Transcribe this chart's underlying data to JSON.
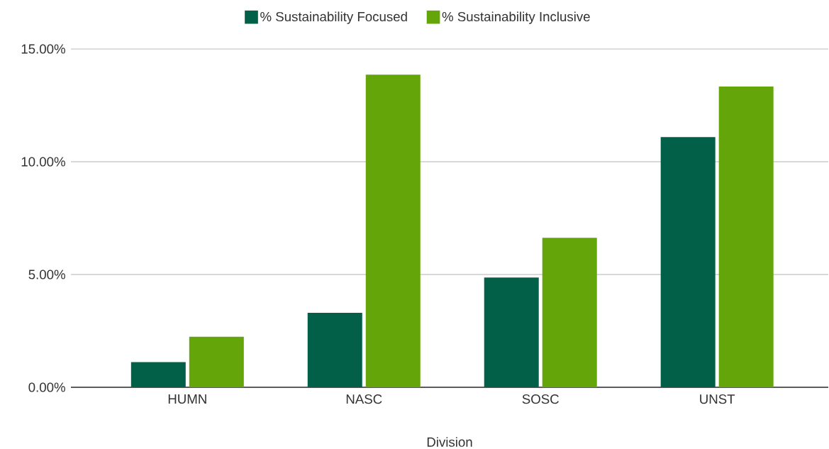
{
  "chart_data": {
    "type": "bar",
    "xlabel": "Division",
    "categories": [
      "HUMN",
      "NASC",
      "SOSC",
      "UNST"
    ],
    "series": [
      {
        "name": "% Sustainability Focused",
        "color": "#026048",
        "values": [
          1.12,
          3.3,
          4.87,
          11.09
        ]
      },
      {
        "name": "% Sustainability Inclusive",
        "color": "#64a50a",
        "values": [
          2.24,
          13.86,
          6.63,
          13.33
        ]
      }
    ],
    "ylim": [
      0,
      15
    ],
    "yticks": [
      {
        "value": 0,
        "label": "0.00%"
      },
      {
        "value": 5,
        "label": "5.00%"
      },
      {
        "value": 10,
        "label": "10.00%"
      },
      {
        "value": 15,
        "label": "15.00%"
      }
    ],
    "grid": "y",
    "legend": "top"
  }
}
